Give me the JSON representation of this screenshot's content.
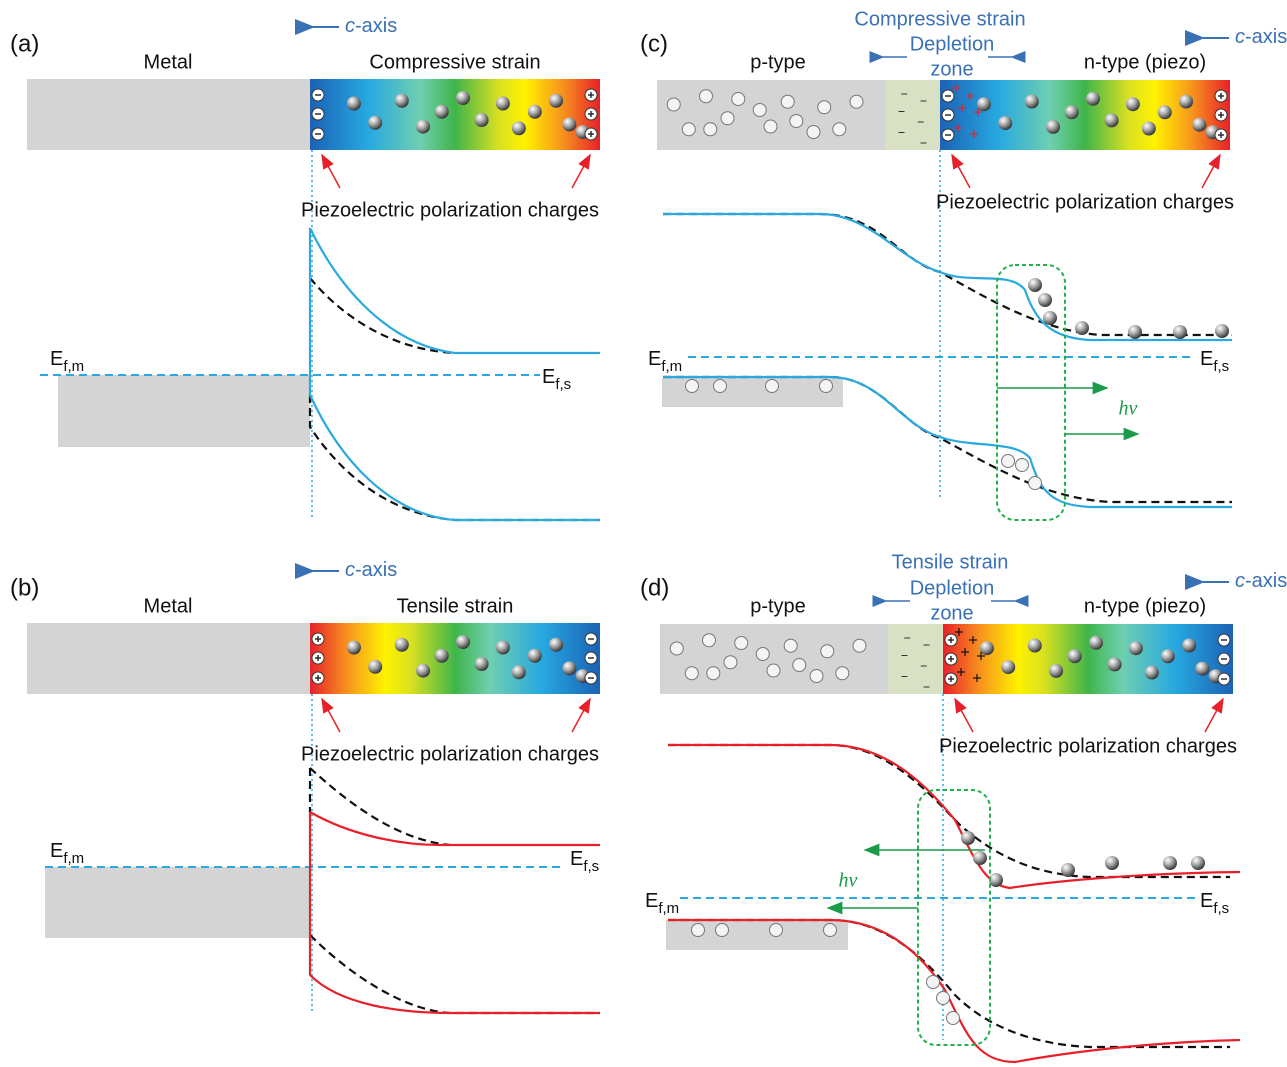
{
  "panels": [
    {
      "label": "(a)",
      "axis_label": {
        "italic": "c",
        "rest": "-axis"
      },
      "left_region": "Metal",
      "right_region": "Compressive strain",
      "charges_caption": "Piezoelectric polarization charges",
      "fermi_metal": {
        "symbol": "E",
        "subscript": "f,m"
      },
      "fermi_semiconductor": {
        "symbol": "E",
        "subscript": "f,s"
      }
    },
    {
      "label": "(b)",
      "axis_label": {
        "italic": "c",
        "rest": "-axis"
      },
      "left_region": "Metal",
      "right_region": "Tensile strain",
      "charges_caption": "Piezoelectric polarization charges",
      "fermi_metal": {
        "symbol": "E",
        "subscript": "f,m"
      },
      "fermi_semiconductor": {
        "symbol": "E",
        "subscript": "f,s"
      }
    },
    {
      "label": "(c)",
      "strain_label": "Compressive strain",
      "depletion_label": [
        "Depletion",
        "zone"
      ],
      "axis_label": {
        "italic": "c",
        "rest": "-axis"
      },
      "left_region": "p-type",
      "right_region": "n-type (piezo)",
      "charges_caption": "Piezoelectric polarization charges",
      "fermi_metal": {
        "symbol": "E",
        "subscript": "f,m"
      },
      "fermi_semiconductor": {
        "symbol": "E",
        "subscript": "f,s"
      },
      "photon_label": "hν"
    },
    {
      "label": "(d)",
      "strain_label": "Tensile strain",
      "depletion_label": [
        "Depletion",
        "zone"
      ],
      "axis_label": {
        "italic": "c",
        "rest": "-axis"
      },
      "left_region": "p-type",
      "right_region": "n-type (piezo)",
      "charges_caption": "Piezoelectric polarization charges",
      "fermi_metal": {
        "symbol": "E",
        "subscript": "f,m"
      },
      "fermi_semiconductor": {
        "symbol": "E",
        "subscript": "f,s"
      },
      "photon_label": "hν"
    }
  ]
}
